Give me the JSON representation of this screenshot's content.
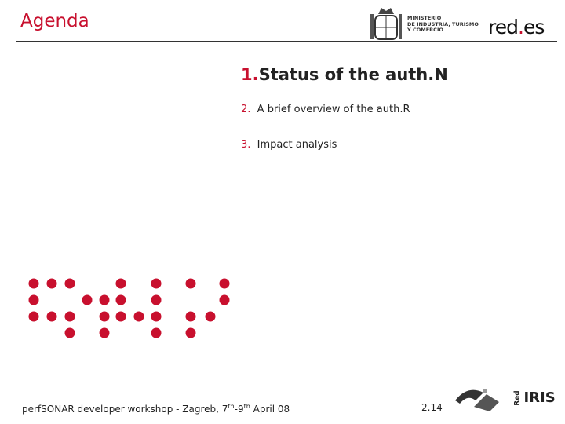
{
  "header": {
    "title": "Agenda",
    "ministry": [
      "MINISTERIO",
      "DE INDUSTRIA, TURISMO",
      "Y COMERCIO"
    ],
    "logo": {
      "name": "red",
      "dot": ".",
      "suffix": "es"
    }
  },
  "agenda": [
    {
      "number": "1.",
      "text": "Status of the auth.N"
    },
    {
      "number": "2.",
      "text": "A brief overview of the auth.R"
    },
    {
      "number": "3.",
      "text": "Impact analysis"
    }
  ],
  "footer": {
    "text": [
      "perfSONAR developer workshop - Zagreb, 7",
      "th",
      "-9",
      "th",
      " April 08"
    ],
    "page": "2.14",
    "partner": {
      "prefix": "Red",
      "name": "IRIS"
    }
  }
}
